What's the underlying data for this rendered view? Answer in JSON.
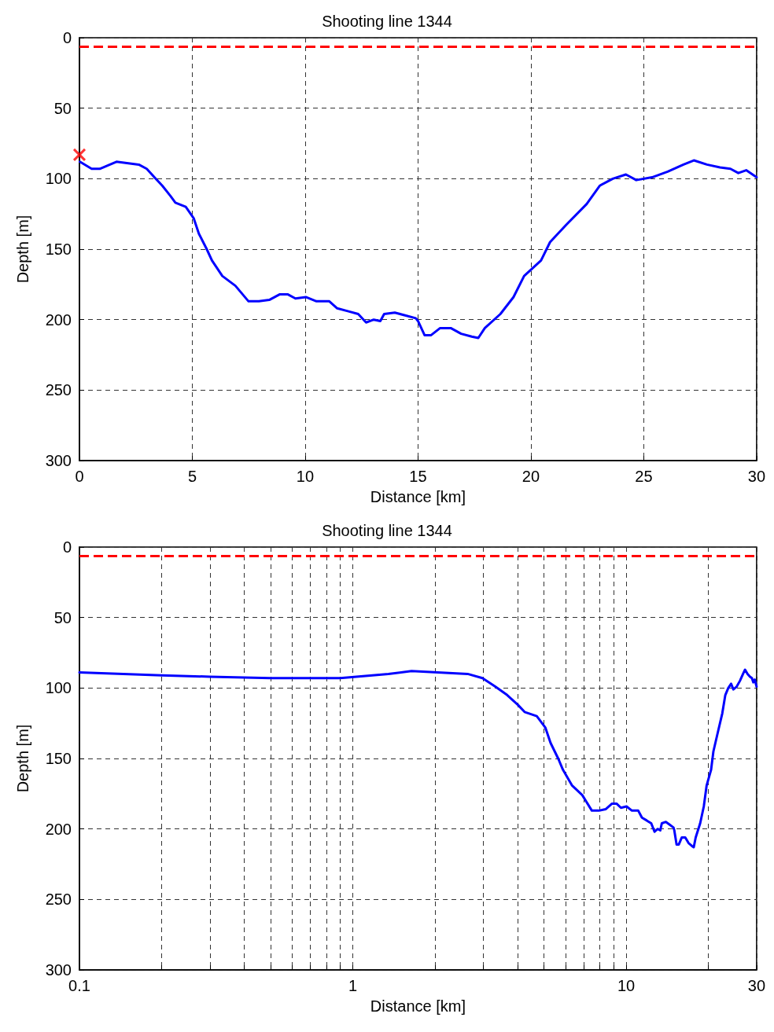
{
  "chart_data": [
    {
      "type": "line",
      "title": "Shooting line 1344",
      "xlabel": "Distance [km]",
      "ylabel": "Depth [m]",
      "xlim": [
        0,
        30
      ],
      "xticks": [
        0,
        5,
        10,
        15,
        20,
        25,
        30
      ],
      "ylim": [
        300,
        0
      ],
      "yticks": [
        0,
        50,
        100,
        150,
        200,
        250,
        300
      ],
      "grid": true,
      "legend": false,
      "line_style": "solid",
      "marker": "none",
      "ref_lines": [
        {
          "axis": "y",
          "value": 6,
          "color": "#ff0000",
          "line_style": "dashed"
        }
      ],
      "series": [
        {
          "color": "#0000ff",
          "x": [
            0.02,
            0.54,
            0.9,
            1.35,
            1.64,
            2.63,
            2.98,
            3.32,
            3.67,
            4.02,
            4.25,
            4.71,
            5.06,
            5.29,
            5.64,
            5.87,
            6.33,
            6.91,
            7.49,
            7.95,
            8.41,
            8.88,
            9.22,
            9.57,
            10.03,
            10.5,
            11.07,
            11.42,
            11.89,
            12.35,
            12.7,
            13.04,
            13.33,
            13.5,
            13.97,
            14.43,
            14.9,
            15.0,
            15.29,
            15.58,
            15.98,
            16.45,
            16.91,
            17.38,
            17.67,
            17.96,
            18.65,
            19.23,
            19.7,
            20.45,
            20.85,
            21.55,
            22.47,
            23.05,
            23.63,
            24.21,
            24.67,
            25.37,
            26.06,
            26.76,
            27.22,
            27.8,
            28.38,
            28.84,
            29.19,
            29.54,
            30
          ],
          "values": [
            88,
            93,
            93,
            90,
            88,
            90,
            93,
            99,
            105,
            112,
            117,
            120,
            128,
            139,
            150,
            158,
            169,
            176,
            187,
            187,
            186,
            182,
            182,
            185,
            184,
            187,
            187,
            192,
            194,
            196,
            202,
            200,
            201,
            196,
            195,
            197,
            199,
            201,
            211,
            211,
            206,
            206,
            210,
            212,
            213,
            206,
            196,
            184,
            169,
            158,
            145,
            133,
            118,
            105,
            100,
            97,
            101,
            99,
            95,
            90,
            87,
            90,
            92,
            93,
            96,
            94,
            99
          ]
        },
        {
          "type": "scatter",
          "marker": "cross",
          "color": "#ff0000",
          "x": [
            0
          ],
          "values": [
            83
          ]
        }
      ]
    },
    {
      "type": "line",
      "title": "Shooting line 1344",
      "xlabel": "Distance [km]",
      "ylabel": "Depth [m]",
      "log": "x",
      "xlim": [
        0.1,
        30
      ],
      "xticks": [
        0.1,
        {
          "value": 0.2,
          "label": null
        },
        {
          "value": 0.3,
          "label": null
        },
        {
          "value": 0.4,
          "label": null
        },
        {
          "value": 0.5,
          "label": null
        },
        {
          "value": 0.6,
          "label": null
        },
        {
          "value": 0.7,
          "label": null
        },
        {
          "value": 0.8,
          "label": null
        },
        {
          "value": 0.9,
          "label": null
        },
        1,
        {
          "value": 2,
          "label": null
        },
        {
          "value": 3,
          "label": null
        },
        {
          "value": 4,
          "label": null
        },
        {
          "value": 5,
          "label": null
        },
        {
          "value": 6,
          "label": null
        },
        {
          "value": 7,
          "label": null
        },
        {
          "value": 8,
          "label": null
        },
        {
          "value": 9,
          "label": null
        },
        10,
        {
          "value": 20,
          "label": null
        },
        30
      ],
      "ylim": [
        300,
        0
      ],
      "yticks": [
        0,
        50,
        100,
        150,
        200,
        250,
        300
      ],
      "grid": true,
      "legend": false,
      "line_style": "solid",
      "marker": "none",
      "ref_lines": [
        {
          "axis": "y",
          "value": 6,
          "color": "#ff0000",
          "line_style": "dashed"
        }
      ],
      "series": [
        {
          "color": "#0000ff",
          "x": [
            0.1,
            0.2,
            0.3,
            0.5,
            0.9,
            1.35,
            1.64,
            2.63,
            2.98,
            3.32,
            3.67,
            4.02,
            4.25,
            4.71,
            5.06,
            5.29,
            5.64,
            5.87,
            6.33,
            6.91,
            7.49,
            7.95,
            8.41,
            8.88,
            9.22,
            9.57,
            10.03,
            10.5,
            11.07,
            11.42,
            11.89,
            12.35,
            12.7,
            13.04,
            13.33,
            13.5,
            13.97,
            14.43,
            14.9,
            15.0,
            15.29,
            15.58,
            15.98,
            16.45,
            16.91,
            17.38,
            17.67,
            17.96,
            18.65,
            19.23,
            19.7,
            20.45,
            20.85,
            21.55,
            22.47,
            23.05,
            23.63,
            24.21,
            24.67,
            25.37,
            26.06,
            26.76,
            27.22,
            27.8,
            28.38,
            28.84,
            29.19,
            29.54,
            30
          ],
          "values": [
            89,
            91,
            92,
            93,
            93,
            90,
            88,
            90,
            93,
            99,
            105,
            112,
            117,
            120,
            128,
            139,
            150,
            158,
            169,
            176,
            187,
            187,
            186,
            182,
            182,
            185,
            184,
            187,
            187,
            192,
            194,
            196,
            202,
            200,
            201,
            196,
            195,
            197,
            199,
            201,
            211,
            211,
            206,
            206,
            210,
            212,
            213,
            206,
            196,
            184,
            169,
            158,
            145,
            133,
            118,
            105,
            100,
            97,
            101,
            99,
            95,
            90,
            87,
            90,
            92,
            93,
            96,
            94,
            99
          ]
        }
      ]
    }
  ]
}
